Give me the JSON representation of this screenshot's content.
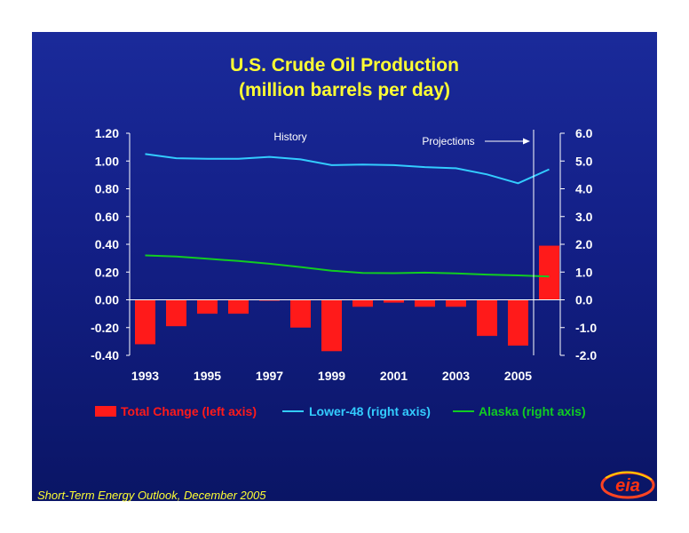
{
  "title_line1": "U.S. Crude Oil Production",
  "title_line2": "(million barrels per day)",
  "source": "Short-Term Energy Outlook, December 2005",
  "logo_text": "eia",
  "colors": {
    "background": "#1a2a9a",
    "title": "#ffff33",
    "total_change": "#ff1a1a",
    "lower48": "#33ccff",
    "alaska": "#11cc22",
    "axis": "#ffffff"
  },
  "chart_data": {
    "type": "bar+line",
    "x_tick_labels": [
      "1993",
      "1995",
      "1997",
      "1999",
      "2001",
      "2003",
      "2005"
    ],
    "annotations": {
      "history": "History",
      "projections": "Projections"
    },
    "divider_between": [
      "2005",
      "2006"
    ],
    "left_axis": {
      "range": [
        -0.4,
        1.2
      ],
      "ticks": [
        "1.20",
        "1.00",
        "0.80",
        "0.60",
        "0.40",
        "0.20",
        "0.00",
        "-0.20",
        "-0.40"
      ]
    },
    "right_axis": {
      "range": [
        -2.0,
        6.0
      ],
      "ticks": [
        "6.0",
        "5.0",
        "4.0",
        "3.0",
        "2.0",
        "1.0",
        "0.0",
        "-1.0",
        "-2.0"
      ]
    },
    "years": [
      1993,
      1994,
      1995,
      1996,
      1997,
      1998,
      1999,
      2000,
      2001,
      2002,
      2003,
      2004,
      2005,
      2006
    ],
    "series": [
      {
        "name": "Total Change (left axis)",
        "axis": "left",
        "kind": "bar",
        "values": [
          -0.32,
          -0.19,
          -0.1,
          -0.1,
          0.0,
          -0.2,
          -0.37,
          -0.05,
          -0.02,
          -0.05,
          -0.05,
          -0.26,
          -0.33,
          0.39
        ]
      },
      {
        "name": "Lower-48 (right axis)",
        "axis": "right",
        "kind": "line",
        "values": [
          5.25,
          5.1,
          5.08,
          5.08,
          5.15,
          5.06,
          4.85,
          4.87,
          4.85,
          4.78,
          4.74,
          4.52,
          4.2,
          4.7
        ]
      },
      {
        "name": "Alaska (right axis)",
        "axis": "right",
        "kind": "line",
        "values": [
          1.6,
          1.56,
          1.48,
          1.4,
          1.3,
          1.18,
          1.05,
          0.97,
          0.96,
          0.98,
          0.95,
          0.91,
          0.88,
          0.84
        ]
      }
    ],
    "legend_position": "bottom"
  }
}
